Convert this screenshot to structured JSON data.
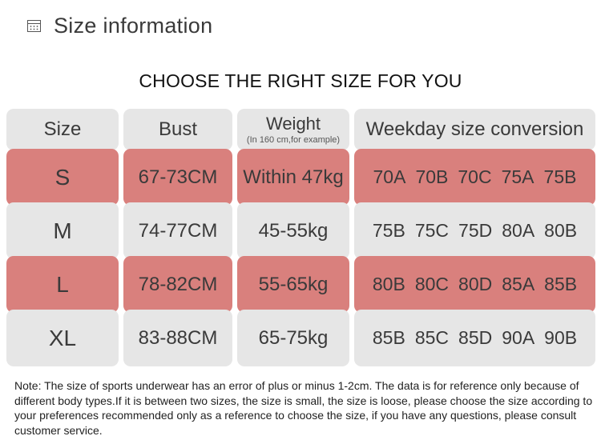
{
  "header": {
    "icon": "size-chart-icon",
    "title": "Size information"
  },
  "heading": "CHOOSE THE RIGHT SIZE FOR YOU",
  "table": {
    "columns": {
      "size": "Size",
      "bust": "Bust",
      "weight": "Weight",
      "weight_note": "(In 160 cm,for example)",
      "conversion": "Weekday size conversion"
    },
    "rows": [
      {
        "size": "S",
        "bust": "67-73CM",
        "weight": "Within 47kg",
        "conversion": [
          "70A",
          "70B",
          "70C",
          "75A",
          "75B"
        ],
        "style": "pink"
      },
      {
        "size": "M",
        "bust": "74-77CM",
        "weight": "45-55kg",
        "conversion": [
          "75B",
          "75C",
          "75D",
          "80A",
          "80B"
        ],
        "style": "grey"
      },
      {
        "size": "L",
        "bust": "78-82CM",
        "weight": "55-65kg",
        "conversion": [
          "80B",
          "80C",
          "80D",
          "85A",
          "85B"
        ],
        "style": "pink"
      },
      {
        "size": "XL",
        "bust": "83-88CM",
        "weight": "65-75kg",
        "conversion": [
          "85B",
          "85C",
          "85D",
          "90A",
          "90B"
        ],
        "style": "grey"
      }
    ]
  },
  "colors": {
    "pink_row": "#d9807d",
    "grey_row": "#e6e6e6"
  },
  "note": "Note: The size of sports underwear has an error of plus or minus 1-2cm. The data is for reference only because of different body types.If it is between two sizes, the size is small, the size is loose, please choose the size according to your preferences recommended only as a reference to choose the size, if you have any questions, please consult customer service."
}
